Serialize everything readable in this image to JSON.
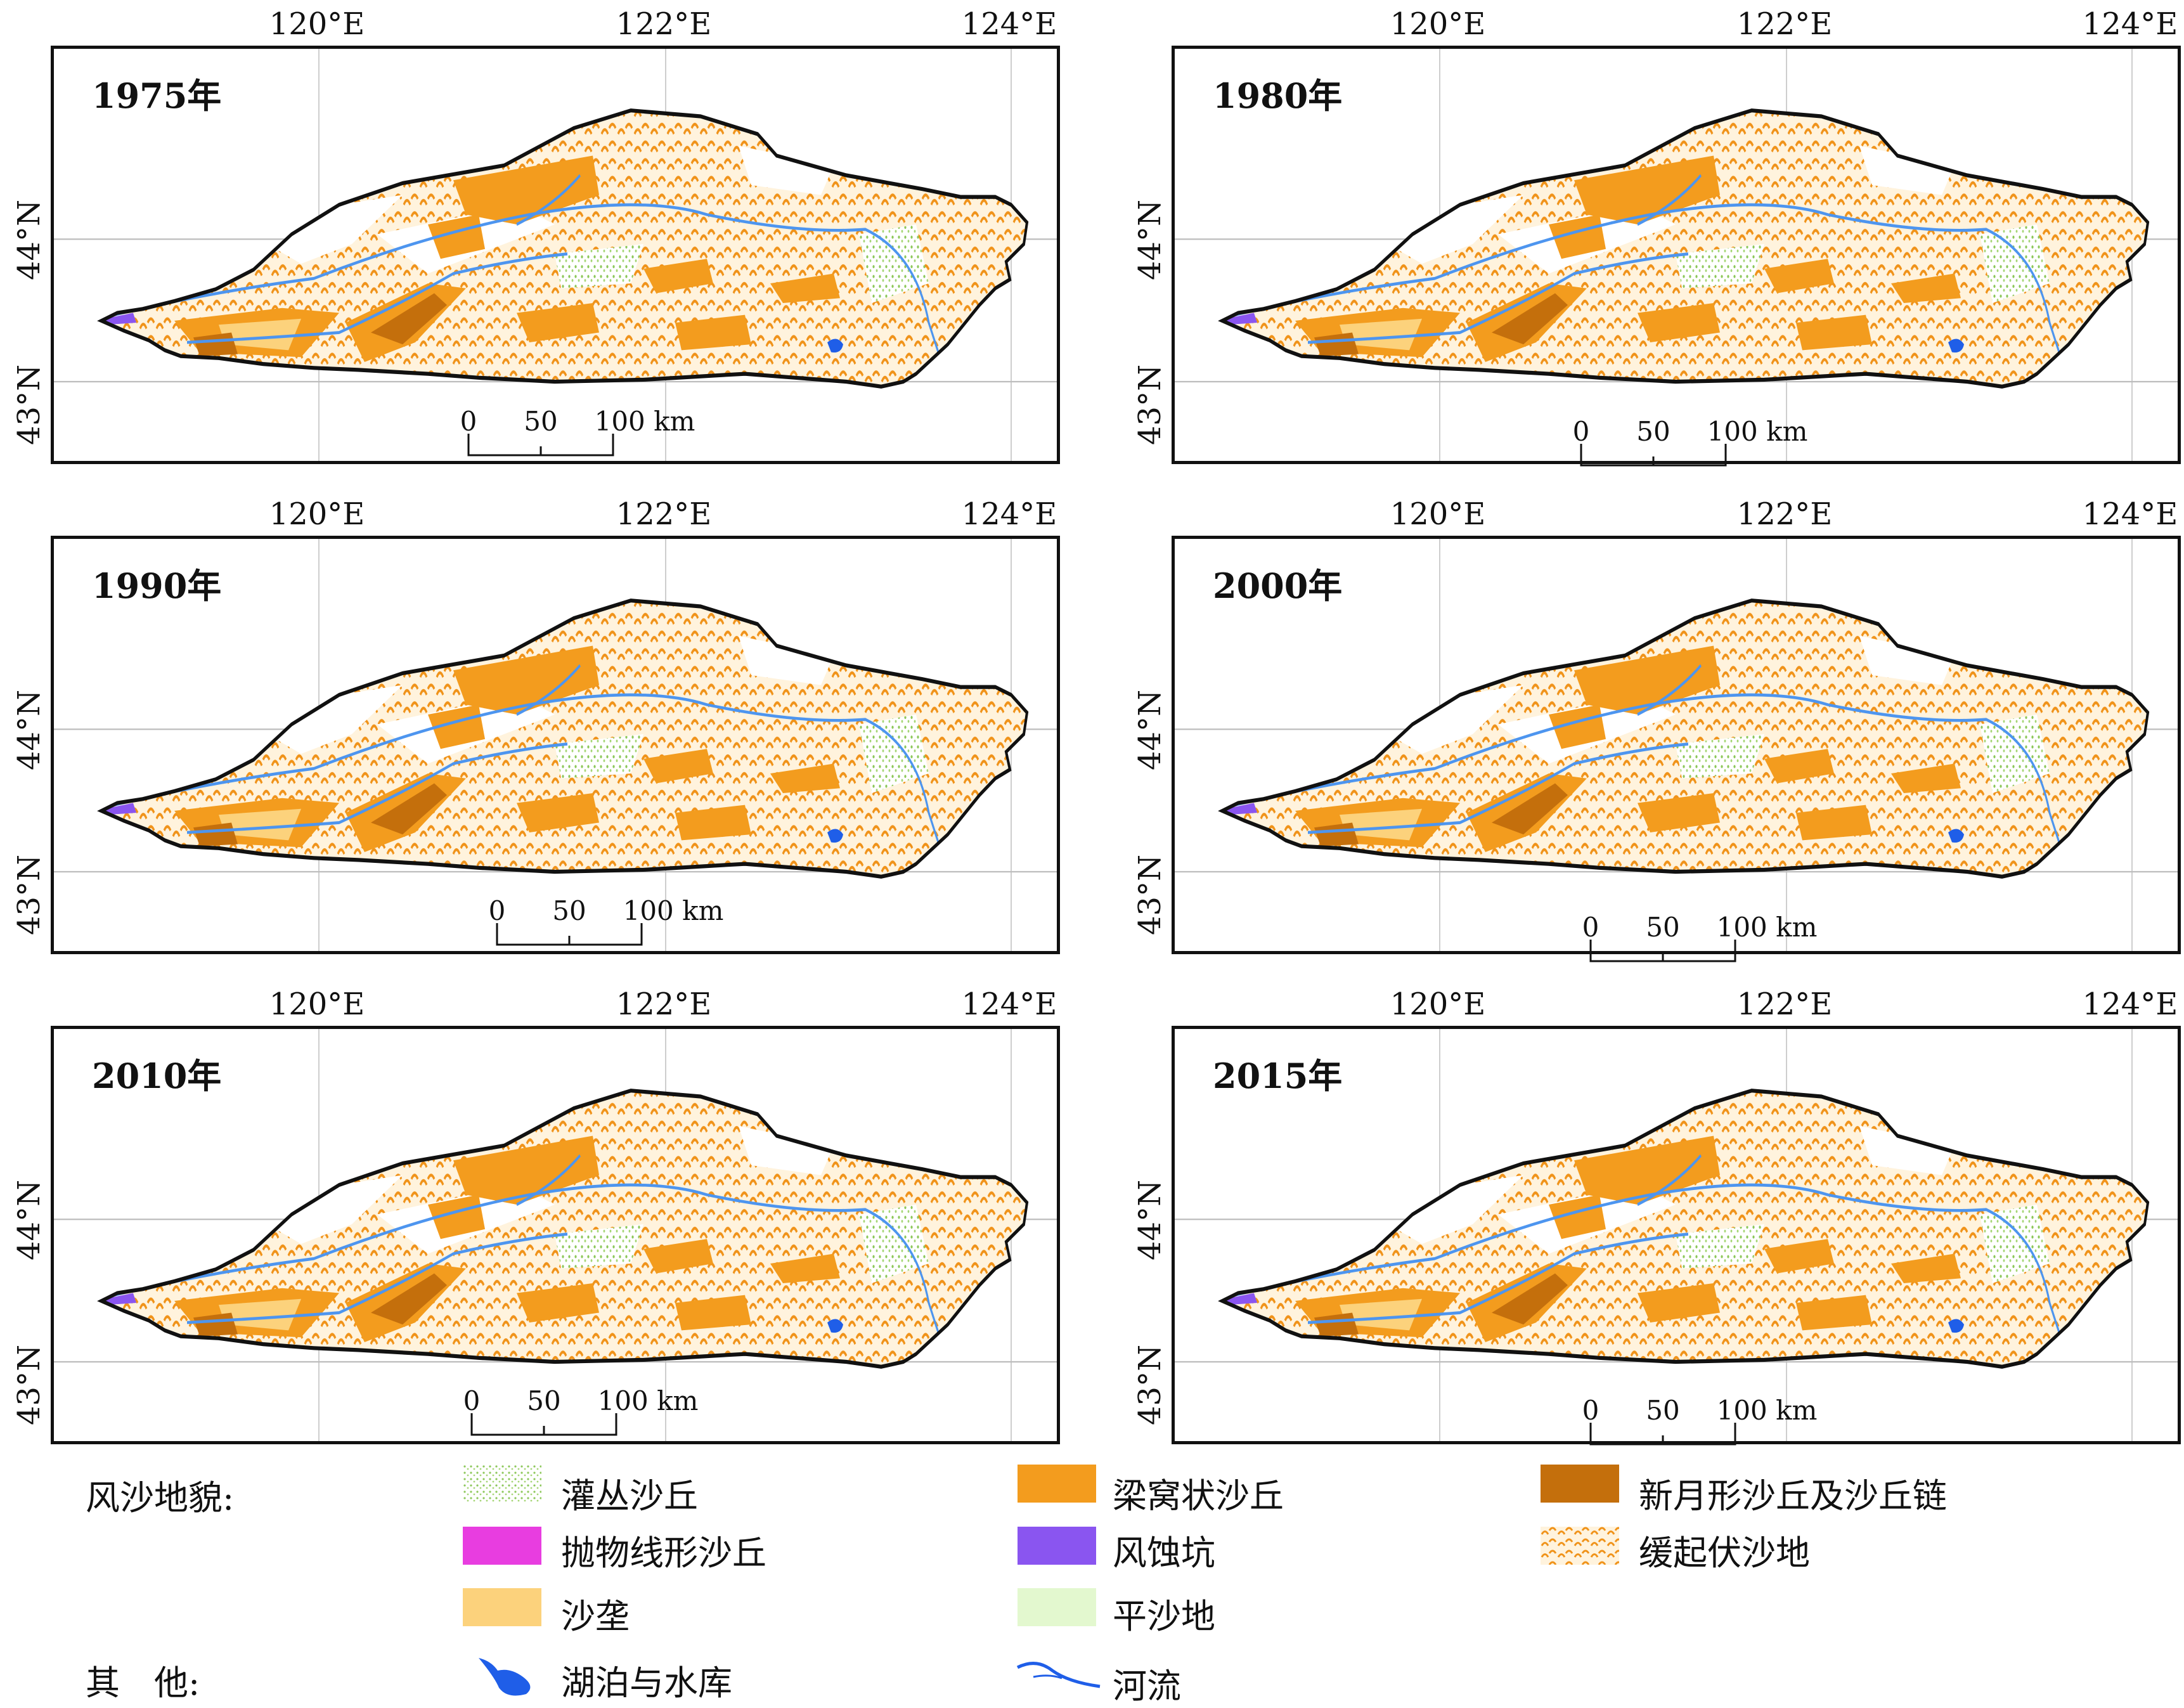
{
  "axes": {
    "lon_labels": [
      "120°E",
      "122°E",
      "124°E"
    ],
    "lat_labels": [
      "44°N",
      "43°N"
    ]
  },
  "scalebar": {
    "ticks": [
      "0",
      "50",
      "100 km"
    ]
  },
  "panels": [
    {
      "year": "1975年"
    },
    {
      "year": "1980年"
    },
    {
      "year": "1990年"
    },
    {
      "year": "2000年"
    },
    {
      "year": "2010年"
    },
    {
      "year": "2015年"
    }
  ],
  "legend": {
    "title": "风沙地貌:",
    "other_title": "其　他:",
    "items": [
      {
        "label": "灌丛沙丘",
        "color": "#b9e08a",
        "pattern": "dots"
      },
      {
        "label": "梁窝状沙丘",
        "color": "#f39c1e"
      },
      {
        "label": "新月形沙丘及沙丘链",
        "color": "#c46f0c"
      },
      {
        "label": "抛物线形沙丘",
        "color": "#e83de0"
      },
      {
        "label": "风蚀坑",
        "color": "#8a55f0"
      },
      {
        "label": "缓起伏沙地",
        "color": "#f3a133",
        "pattern": "scales"
      },
      {
        "label": "沙垄",
        "color": "#fcd27c"
      },
      {
        "label": "平沙地",
        "color": "#e3f8cf"
      }
    ],
    "other_items": [
      {
        "label": "湖泊与水库",
        "color": "#1f5ee8",
        "icon": "lake-icon"
      },
      {
        "label": "河流",
        "color": "#1f5ee8",
        "icon": "river-icon"
      }
    ]
  }
}
